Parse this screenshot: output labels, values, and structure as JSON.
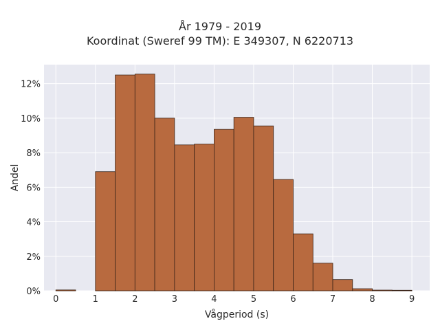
{
  "chart_data": {
    "type": "bar",
    "title": "År 1979 - 2019",
    "subtitle": "Koordinat (Sweref 99 TM): E 349307, N 6220713",
    "xlabel": "Vågperiod (s)",
    "ylabel": "Andel",
    "bin_width": 0.5,
    "xlim": [
      -0.3,
      9.45
    ],
    "ylim": [
      0,
      13.1
    ],
    "x_ticks": [
      0,
      1,
      2,
      3,
      4,
      5,
      6,
      7,
      8,
      9
    ],
    "y_ticks": [
      0,
      2,
      4,
      6,
      8,
      10,
      12
    ],
    "y_tick_suffix": "%",
    "grid": true,
    "bins": [
      {
        "start": 0.0,
        "value": 0.05
      },
      {
        "start": 1.0,
        "value": 6.9
      },
      {
        "start": 1.5,
        "value": 12.5
      },
      {
        "start": 2.0,
        "value": 12.55
      },
      {
        "start": 2.5,
        "value": 10.0
      },
      {
        "start": 3.0,
        "value": 8.45
      },
      {
        "start": 3.5,
        "value": 8.5
      },
      {
        "start": 4.0,
        "value": 9.35
      },
      {
        "start": 4.5,
        "value": 10.05
      },
      {
        "start": 5.0,
        "value": 9.55
      },
      {
        "start": 5.5,
        "value": 6.45
      },
      {
        "start": 6.0,
        "value": 3.3
      },
      {
        "start": 6.5,
        "value": 1.6
      },
      {
        "start": 7.0,
        "value": 0.65
      },
      {
        "start": 7.5,
        "value": 0.12
      },
      {
        "start": 8.0,
        "value": 0.04
      },
      {
        "start": 8.5,
        "value": 0.03
      }
    ],
    "colors": {
      "bar_fill": "#b86a3f",
      "bar_stroke": "#3b2418",
      "plot_bg": "#e8e9f1",
      "grid": "#ffffff"
    }
  }
}
